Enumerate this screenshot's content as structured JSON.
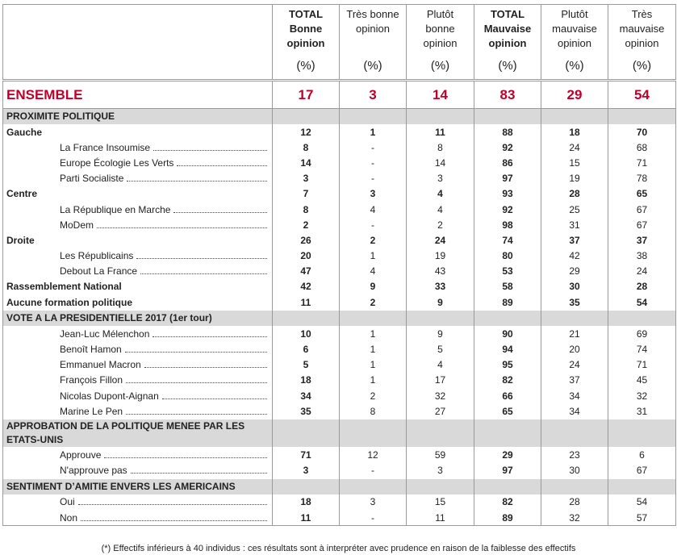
{
  "header": {
    "columns": [
      {
        "lines": [
          "TOTAL",
          "Bonne",
          "opinion"
        ],
        "unit": "(%)"
      },
      {
        "lines": [
          "Très bonne",
          "opinion"
        ],
        "unit": "(%)"
      },
      {
        "lines": [
          "Plutôt",
          "bonne",
          "opinion"
        ],
        "unit": "(%)"
      },
      {
        "lines": [
          "TOTAL",
          "Mauvaise",
          "opinion"
        ],
        "unit": "(%)"
      },
      {
        "lines": [
          "Plutôt",
          "mauvaise",
          "opinion"
        ],
        "unit": "(%)"
      },
      {
        "lines": [
          "Très",
          "mauvaise",
          "opinion"
        ],
        "unit": "(%)"
      }
    ]
  },
  "ensemble": {
    "label": "ENSEMBLE",
    "values": [
      17,
      3,
      14,
      83,
      29,
      54
    ]
  },
  "sections": [
    {
      "title": "PROXIMITE POLITIQUE",
      "rows": [
        {
          "label": "Gauche",
          "values": [
            12,
            1,
            11,
            88,
            18,
            70
          ]
        },
        {
          "label": "La France Insoumise",
          "values": [
            8,
            "-",
            8,
            92,
            24,
            68
          ]
        },
        {
          "label": "Europe Écologie Les Verts",
          "values": [
            14,
            "-",
            14,
            86,
            15,
            71
          ]
        },
        {
          "label": "Parti Socialiste",
          "values": [
            3,
            "-",
            3,
            97,
            19,
            78
          ]
        },
        {
          "label": "Centre",
          "values": [
            7,
            3,
            4,
            93,
            28,
            65
          ]
        },
        {
          "label": "La République en Marche",
          "values": [
            8,
            4,
            4,
            92,
            25,
            67
          ]
        },
        {
          "label": "MoDem",
          "values": [
            2,
            "-",
            2,
            98,
            31,
            67
          ]
        },
        {
          "label": "Droite",
          "values": [
            26,
            2,
            24,
            74,
            37,
            37
          ]
        },
        {
          "label": "Les Républicains",
          "values": [
            20,
            1,
            19,
            80,
            42,
            38
          ]
        },
        {
          "label": "Debout La France",
          "values": [
            47,
            4,
            43,
            53,
            29,
            24
          ]
        },
        {
          "label": "Rassemblement National",
          "values": [
            42,
            9,
            33,
            58,
            30,
            28
          ]
        },
        {
          "label": "Aucune formation politique",
          "values": [
            11,
            2,
            9,
            89,
            35,
            54
          ]
        }
      ]
    },
    {
      "title": "VOTE A LA PRESIDENTIELLE 2017 (1er tour)",
      "rows": [
        {
          "label": "Jean-Luc Mélenchon",
          "values": [
            10,
            1,
            9,
            90,
            21,
            69
          ]
        },
        {
          "label": "Benoît Hamon",
          "values": [
            6,
            1,
            5,
            94,
            20,
            74
          ]
        },
        {
          "label": "Emmanuel Macron",
          "values": [
            5,
            1,
            4,
            95,
            24,
            71
          ]
        },
        {
          "label": "François Fillon",
          "values": [
            18,
            1,
            17,
            82,
            37,
            45
          ]
        },
        {
          "label": "Nicolas Dupont-Aignan",
          "values": [
            34,
            2,
            32,
            66,
            34,
            32
          ]
        },
        {
          "label": "Marine Le Pen",
          "values": [
            35,
            8,
            27,
            65,
            34,
            31
          ]
        }
      ]
    },
    {
      "title": "APPROBATION DE LA POLITIQUE MENEE PAR LES ETATS-UNIS",
      "rows": [
        {
          "label": "Approuve",
          "values": [
            71,
            12,
            59,
            29,
            23,
            6
          ]
        },
        {
          "label": "N'approuve pas",
          "values": [
            3,
            "-",
            3,
            97,
            30,
            67
          ]
        }
      ]
    },
    {
      "title": "SENTIMENT D’AMITIE ENVERS LES AMERICAINS",
      "rows": [
        {
          "label": "Oui",
          "values": [
            18,
            3,
            15,
            82,
            28,
            54
          ]
        },
        {
          "label": "Non",
          "values": [
            11,
            "-",
            11,
            89,
            32,
            57
          ]
        }
      ]
    }
  ],
  "footnote": "(*) Effectifs inférieurs à 40 individus : ces résultats sont à interpréter avec prudence en raison de la faiblesse des effectifs"
}
